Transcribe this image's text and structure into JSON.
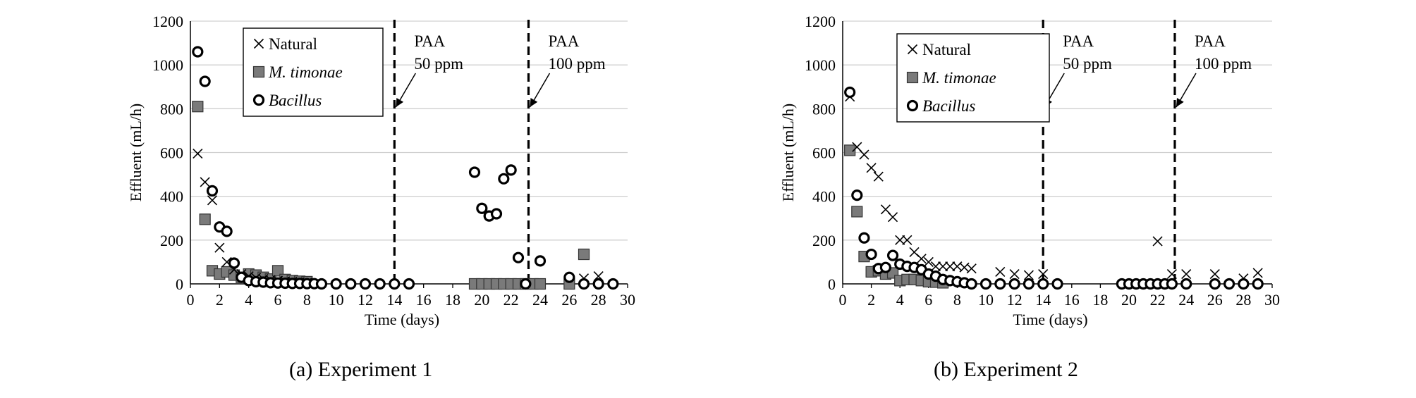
{
  "chart_data": [
    {
      "type": "scatter",
      "caption": "(a)  Experiment  1",
      "xlabel": "Time (days)",
      "ylabel": "Effluent (mL/h)",
      "xlim": [
        0,
        30
      ],
      "ylim": [
        0,
        1200
      ],
      "xticks": [
        "0",
        "2",
        "4",
        "6",
        "8",
        "10",
        "12",
        "14",
        "16",
        "18",
        "20",
        "22",
        "24",
        "26",
        "28",
        "30"
      ],
      "yticks": [
        "0",
        "200",
        "400",
        "600",
        "800",
        "1000",
        "1200"
      ],
      "grid": "horizontal",
      "legend_position": "top-left",
      "series": [
        {
          "name": "Natural",
          "marker": "x",
          "points": [
            [
              0.5,
              595
            ],
            [
              1,
              465
            ],
            [
              1.5,
              382
            ],
            [
              2,
              165
            ],
            [
              2.5,
              100
            ],
            [
              3,
              65
            ],
            [
              3.5,
              45
            ],
            [
              4,
              35
            ],
            [
              4.5,
              28
            ],
            [
              5,
              22
            ],
            [
              5.5,
              18
            ],
            [
              6,
              15
            ],
            [
              6.5,
              12
            ],
            [
              7,
              10
            ],
            [
              7.5,
              8
            ],
            [
              8,
              6
            ],
            [
              27,
              25
            ],
            [
              28,
              35
            ]
          ]
        },
        {
          "name": "M. timonae",
          "marker": "square",
          "points": [
            [
              0.5,
              810
            ],
            [
              1,
              295
            ],
            [
              1.5,
              60
            ],
            [
              2,
              45
            ],
            [
              2.5,
              55
            ],
            [
              3,
              40
            ],
            [
              3.5,
              30
            ],
            [
              4,
              45
            ],
            [
              4.5,
              40
            ],
            [
              5,
              30
            ],
            [
              5.5,
              22
            ],
            [
              6,
              60
            ],
            [
              6.5,
              20
            ],
            [
              7,
              15
            ],
            [
              7.5,
              12
            ],
            [
              8,
              10
            ],
            [
              19.5,
              0
            ],
            [
              20,
              0
            ],
            [
              20.5,
              0
            ],
            [
              21,
              0
            ],
            [
              21.5,
              0
            ],
            [
              22,
              0
            ],
            [
              22.5,
              0
            ],
            [
              23,
              0
            ],
            [
              23.5,
              0
            ],
            [
              24,
              0
            ],
            [
              26,
              0
            ],
            [
              27,
              135
            ]
          ]
        },
        {
          "name": "Bacillus",
          "marker": "circle",
          "points": [
            [
              0.5,
              1060
            ],
            [
              1,
              925
            ],
            [
              1.5,
              425
            ],
            [
              2,
              260
            ],
            [
              2.5,
              240
            ],
            [
              3,
              95
            ],
            [
              3.5,
              30
            ],
            [
              4,
              15
            ],
            [
              4.5,
              10
            ],
            [
              5,
              8
            ],
            [
              5.5,
              5
            ],
            [
              6,
              4
            ],
            [
              6.5,
              3
            ],
            [
              7,
              2
            ],
            [
              7.5,
              2
            ],
            [
              8,
              1
            ],
            [
              8.5,
              1
            ],
            [
              9,
              0
            ],
            [
              10,
              0
            ],
            [
              11,
              0
            ],
            [
              12,
              0
            ],
            [
              13,
              0
            ],
            [
              14,
              0
            ],
            [
              15,
              0
            ],
            [
              19.5,
              510
            ],
            [
              20,
              345
            ],
            [
              20.5,
              310
            ],
            [
              21,
              320
            ],
            [
              21.5,
              480
            ],
            [
              22,
              520
            ],
            [
              22.5,
              120
            ],
            [
              23,
              0
            ],
            [
              24,
              105
            ],
            [
              26,
              30
            ],
            [
              27,
              0
            ],
            [
              28,
              0
            ],
            [
              29,
              0
            ]
          ]
        }
      ],
      "annotations": [
        {
          "x": 14,
          "line1": "PAA",
          "line2": "50 ppm"
        },
        {
          "x": 23.2,
          "line1": "PAA",
          "line2": "100 ppm"
        }
      ]
    },
    {
      "type": "scatter",
      "caption": "(b)  Experiment  2",
      "xlabel": "Time (days)",
      "ylabel": "Effluent (mL/h)",
      "xlim": [
        0,
        30
      ],
      "ylim": [
        0,
        1200
      ],
      "xticks": [
        "0",
        "2",
        "4",
        "6",
        "8",
        "10",
        "12",
        "14",
        "16",
        "18",
        "20",
        "22",
        "24",
        "26",
        "28",
        "30"
      ],
      "yticks": [
        "0",
        "200",
        "400",
        "600",
        "800",
        "1000",
        "1200"
      ],
      "grid": "horizontal",
      "legend_position": "top-left",
      "series": [
        {
          "name": "Natural",
          "marker": "x",
          "points": [
            [
              0.5,
              855
            ],
            [
              1,
              625
            ],
            [
              1.5,
              590
            ],
            [
              2,
              530
            ],
            [
              2.5,
              490
            ],
            [
              3,
              340
            ],
            [
              3.5,
              305
            ],
            [
              4,
              200
            ],
            [
              4.5,
              200
            ],
            [
              5,
              145
            ],
            [
              5.5,
              115
            ],
            [
              6,
              100
            ],
            [
              6.5,
              80
            ],
            [
              7,
              80
            ],
            [
              7.5,
              80
            ],
            [
              8,
              80
            ],
            [
              8.5,
              75
            ],
            [
              9,
              70
            ],
            [
              11,
              55
            ],
            [
              12,
              45
            ],
            [
              13,
              40
            ],
            [
              14,
              45
            ],
            [
              22,
              195
            ],
            [
              23,
              45
            ],
            [
              24,
              45
            ],
            [
              26,
              45
            ],
            [
              28,
              25
            ],
            [
              29,
              50
            ]
          ]
        },
        {
          "name": "M. timonae",
          "marker": "square",
          "points": [
            [
              0.5,
              610
            ],
            [
              1,
              330
            ],
            [
              1.5,
              125
            ],
            [
              2,
              55
            ],
            [
              2.5,
              60
            ],
            [
              3,
              45
            ],
            [
              3.5,
              50
            ],
            [
              4,
              15
            ],
            [
              4.5,
              20
            ],
            [
              5,
              20
            ],
            [
              5.5,
              15
            ],
            [
              6,
              10
            ],
            [
              6.5,
              8
            ],
            [
              7,
              5
            ]
          ]
        },
        {
          "name": "Bacillus",
          "marker": "circle",
          "points": [
            [
              0.5,
              875
            ],
            [
              1,
              405
            ],
            [
              1.5,
              210
            ],
            [
              2,
              135
            ],
            [
              2.5,
              70
            ],
            [
              3,
              75
            ],
            [
              3.5,
              130
            ],
            [
              4,
              90
            ],
            [
              4.5,
              80
            ],
            [
              5,
              75
            ],
            [
              5.5,
              65
            ],
            [
              6,
              45
            ],
            [
              6.5,
              35
            ],
            [
              7,
              20
            ],
            [
              7.5,
              15
            ],
            [
              8,
              10
            ],
            [
              8.5,
              5
            ],
            [
              9,
              0
            ],
            [
              10,
              0
            ],
            [
              11,
              0
            ],
            [
              12,
              0
            ],
            [
              13,
              0
            ],
            [
              14,
              0
            ],
            [
              15,
              0
            ],
            [
              19.5,
              0
            ],
            [
              20,
              0
            ],
            [
              20.5,
              0
            ],
            [
              21,
              0
            ],
            [
              21.5,
              0
            ],
            [
              22,
              0
            ],
            [
              22.5,
              0
            ],
            [
              23,
              0
            ],
            [
              24,
              0
            ],
            [
              26,
              0
            ],
            [
              27,
              0
            ],
            [
              28,
              0
            ],
            [
              29,
              0
            ]
          ]
        }
      ],
      "annotations": [
        {
          "x": 14,
          "line1": "PAA",
          "line2": "50 ppm"
        },
        {
          "x": 23.2,
          "line1": "PAA",
          "line2": "100 ppm"
        }
      ]
    }
  ]
}
